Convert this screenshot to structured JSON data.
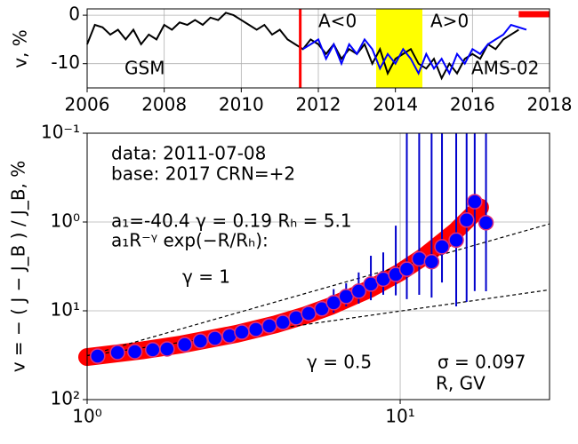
{
  "chart_data": [
    {
      "type": "line",
      "ylabel": "v, %",
      "xlim": [
        2006,
        2018
      ],
      "xticks": [
        2006,
        2008,
        2010,
        2012,
        2014,
        2016,
        2018
      ],
      "ylim": [
        -15,
        1.3
      ],
      "yticks": [
        0,
        -10
      ],
      "grid": true,
      "series": [
        {
          "name": "GSM",
          "color": "#000000",
          "x": [
            2006,
            2006.2,
            2006.4,
            2006.6,
            2006.8,
            2007,
            2007.2,
            2007.4,
            2007.6,
            2007.8,
            2008,
            2008.2,
            2008.4,
            2008.6,
            2008.8,
            2009,
            2009.2,
            2009.4,
            2009.6,
            2009.8,
            2010,
            2010.2,
            2010.4,
            2010.6,
            2010.8,
            2011,
            2011.2,
            2011.4,
            2011.6,
            2011.8,
            2012,
            2012.2,
            2012.4,
            2012.6,
            2012.8,
            2013,
            2013.2,
            2013.4,
            2013.6,
            2013.8,
            2014,
            2014.2,
            2014.4,
            2014.6,
            2014.8,
            2015,
            2015.2,
            2015.4,
            2015.6,
            2015.8,
            2016,
            2016.2,
            2016.4,
            2016.6,
            2016.8,
            2017,
            2017.2
          ],
          "values": [
            -6,
            -2,
            -2.5,
            -4,
            -3,
            -5,
            -3,
            -6,
            -4,
            -5,
            -2,
            -3,
            -1.5,
            -2,
            -1,
            -2,
            -0.5,
            -1,
            0.5,
            0,
            -1,
            -2,
            -3,
            -2,
            -4,
            -3,
            -5,
            -6,
            -7,
            -5,
            -6,
            -8,
            -6,
            -9,
            -7,
            -8,
            -6,
            -10,
            -7,
            -12,
            -9,
            -8,
            -7,
            -10,
            -11,
            -9,
            -13,
            -10,
            -12,
            -9,
            -8,
            -9,
            -6,
            -7,
            -5,
            -4,
            -3
          ]
        },
        {
          "name": "AMS-02",
          "color": "#0000ff",
          "x": [
            2011.6,
            2011.8,
            2012,
            2012.2,
            2012.4,
            2012.6,
            2012.8,
            2013,
            2013.2,
            2013.4,
            2013.6,
            2013.8,
            2014,
            2014.2,
            2014.4,
            2014.6,
            2014.8,
            2015,
            2015.2,
            2015.4,
            2015.6,
            2015.8,
            2016,
            2016.2,
            2016.4,
            2016.6,
            2016.8,
            2017,
            2017.2,
            2017.4
          ],
          "values": [
            -7,
            -6,
            -5,
            -9,
            -6,
            -10,
            -6,
            -8,
            -5,
            -7,
            -11,
            -8,
            -10,
            -7,
            -9,
            -12,
            -8,
            -11,
            -9,
            -12,
            -8,
            -10,
            -7,
            -8,
            -6,
            -5,
            -4,
            -2,
            -2.5,
            -3
          ]
        }
      ],
      "vline": {
        "x": 2011.53,
        "color": "#ff0000"
      },
      "span": {
        "x": [
          2013.5,
          2014.7
        ],
        "color": "#ffff00"
      },
      "bar": {
        "x": [
          2017.2,
          2018
        ],
        "y": 0.2,
        "color": "#ff0000"
      },
      "annotations": [
        "A<0",
        "A>0"
      ]
    },
    {
      "type": "scatter",
      "xlabel": "R, GV",
      "ylabel": "v = − ( J − J_B ) / J_B, %",
      "xlog": true,
      "ylog": true,
      "y_inverted": true,
      "xlim": [
        1,
        30
      ],
      "xticks": [
        {
          "value": 1,
          "label": "10⁰"
        },
        {
          "value": 10,
          "label": "10¹"
        }
      ],
      "ylim": [
        0.1,
        100
      ],
      "yticks": [
        {
          "value": 0.1,
          "label": "10⁻¹"
        },
        {
          "value": 1,
          "label": "10⁰"
        },
        {
          "value": 10,
          "label": "10¹"
        },
        {
          "value": 100,
          "label": "10²"
        }
      ],
      "grid": true,
      "x": [
        1.08,
        1.25,
        1.42,
        1.62,
        1.8,
        2.05,
        2.3,
        2.56,
        2.85,
        3.12,
        3.46,
        3.82,
        4.22,
        4.65,
        5.1,
        5.62,
        6.13,
        6.72,
        7.37,
        8.06,
        8.83,
        9.68,
        10.5,
        11.5,
        12.6,
        13.6,
        15.1,
        16.3,
        17.3,
        18.8
      ],
      "values": [
        32.4,
        29.5,
        28.8,
        27.5,
        26.9,
        24,
        21.9,
        20.4,
        19.1,
        17.4,
        16.2,
        14.8,
        13.5,
        12,
        10.7,
        9.5,
        8.1,
        6.9,
        6,
        5,
        4.4,
        3.9,
        3.4,
        2.6,
        2.8,
        1.9,
        1.6,
        0.95,
        0.59,
        1.02
      ],
      "errors": [
        0.5,
        0.5,
        0.5,
        0.5,
        0.5,
        0.5,
        0.5,
        0.5,
        0.6,
        0.6,
        0.7,
        0.8,
        0.9,
        1,
        1.2,
        1.5,
        2.4,
        2,
        2.3,
        2.6,
        2.2,
        2.8,
        4,
        4,
        4.3,
        2.9,
        7.3,
        7,
        5.4,
        5
      ],
      "color": "#0000ff",
      "edgecolor": "#e0307a",
      "errcolor": "#0000cc",
      "fit": {
        "color": "#ff0000",
        "x": [
          1,
          1.5,
          2,
          3,
          4,
          5,
          6,
          8,
          10,
          12,
          15,
          18
        ],
        "values": [
          33.2,
          27.9,
          23.9,
          18.2,
          14.2,
          11.2,
          8.86,
          5.67,
          3.68,
          2.4,
          1.28,
          0.684
        ]
      },
      "guides": [
        {
          "x": [
            1,
            30
          ],
          "values": [
            32,
            1.05
          ]
        },
        {
          "x": [
            1,
            30
          ],
          "values": [
            32,
            5.8
          ]
        }
      ],
      "annotations": [
        "data: 2011-07-08",
        "base: 2017   CRN=+2",
        "a₁=-40.4  γ = 0.19  Rₕ =  5.1",
        "a₁R⁻ᵞ exp(−R/Rₕ):",
        "γ = 1",
        "γ = 0.5",
        "σ = 0.097"
      ]
    }
  ]
}
